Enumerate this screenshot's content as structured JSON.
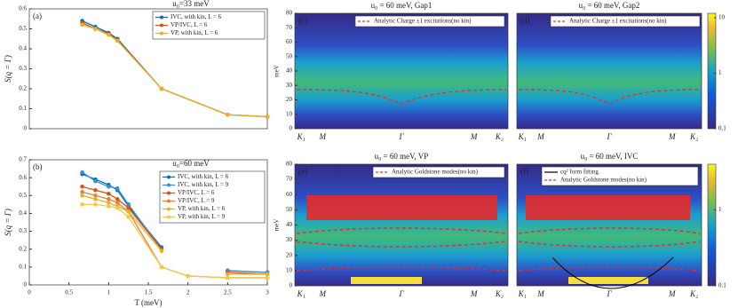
{
  "chart_data": [
    {
      "type": "line",
      "label": "(a)",
      "title": "u₀=33 meV",
      "ylabel": "S(q = Γ)",
      "x": [
        0.667,
        0.833,
        1.0,
        1.111,
        1.667,
        2.5,
        3.0
      ],
      "xlim": [
        0,
        3
      ],
      "ylim": [
        0,
        0.6
      ],
      "yticks": [
        0,
        0.1,
        0.2,
        0.3,
        0.4,
        0.5,
        0.6
      ],
      "series": [
        {
          "name": "IVC, with kin, L = 6",
          "color": "#0072bd",
          "values": [
            0.54,
            0.51,
            0.48,
            0.45,
            0.2,
            0.07,
            0.06
          ]
        },
        {
          "name": "VP/IVC, L = 6",
          "color": "#d95319",
          "values": [
            0.53,
            0.5,
            0.475,
            0.445,
            0.2,
            0.07,
            0.06
          ]
        },
        {
          "name": "VP, with kin, L = 6",
          "color": "#edb120",
          "values": [
            0.52,
            0.5,
            0.47,
            0.44,
            0.2,
            0.07,
            0.06
          ]
        }
      ]
    },
    {
      "type": "line",
      "label": "(b)",
      "title": "u₀=60 meV",
      "ylabel": "S(q = Γ)",
      "xlabel": "T (meV)",
      "x": [
        0.667,
        0.833,
        1.0,
        1.111,
        1.25,
        1.667,
        2.0,
        2.5,
        3.0
      ],
      "xlim": [
        0,
        3
      ],
      "ylim": [
        0,
        0.7
      ],
      "xticks": [
        0,
        0.5,
        1,
        1.5,
        2,
        2.5,
        3
      ],
      "yticks": [
        0,
        0.1,
        0.2,
        0.3,
        0.4,
        0.5,
        0.6,
        0.7
      ],
      "series": [
        {
          "name": "IVC, with kin, L = 6",
          "color": "#0072bd",
          "values": [
            0.62,
            0.59,
            0.56,
            0.53,
            0.44,
            0.21,
            null,
            0.08,
            0.07
          ]
        },
        {
          "name": "IVC, with kin, L = 9",
          "color": "#3a8fd0",
          "values": [
            0.63,
            0.58,
            0.55,
            0.54,
            0.45,
            0.2,
            null,
            0.08,
            0.07
          ]
        },
        {
          "name": "VP/IVC, L = 6",
          "color": "#d95319",
          "values": [
            0.55,
            0.53,
            0.51,
            0.48,
            0.43,
            0.2,
            null,
            0.07,
            0.06
          ]
        },
        {
          "name": "VP/IVC, L = 9",
          "color": "#e8803f",
          "values": [
            0.52,
            0.5,
            0.48,
            0.46,
            0.41,
            0.1,
            0.05,
            0.04,
            0.04
          ]
        },
        {
          "name": "VP, with kin, L = 6",
          "color": "#edb120",
          "values": [
            0.5,
            0.48,
            0.46,
            0.44,
            0.41,
            0.19,
            null,
            0.06,
            0.06
          ]
        },
        {
          "name": "VP, with kin, L = 9",
          "color": "#f3c84a",
          "values": [
            0.45,
            0.45,
            0.44,
            0.43,
            0.38,
            0.1,
            0.05,
            0.04,
            0.04
          ]
        }
      ]
    },
    {
      "type": "heatmap",
      "label": "(c)",
      "title": "u₀ = 60 meV, Gap1",
      "ylabel": "meV",
      "categories": [
        "K₁",
        "M",
        "Γ",
        "M",
        "K₂"
      ],
      "ylim": [
        0,
        80
      ],
      "yticks": [
        0,
        10,
        20,
        30,
        40,
        50,
        60,
        70,
        80
      ],
      "legend": [
        {
          "name": "Analytic Charge ±1 excitations(no kin)",
          "color": "#e03030"
        }
      ]
    },
    {
      "type": "heatmap",
      "label": "(d)",
      "title": "u₀ = 60 meV, Gap2",
      "categories": [
        "K₁",
        "M",
        "Γ",
        "M",
        "K₂"
      ],
      "ylim": [
        0,
        80
      ],
      "legend": [
        {
          "name": "Analytic Charge ±1 excitations(no kin)",
          "color": "#e03030"
        }
      ],
      "colorbar_lim": [
        0.1,
        12
      ],
      "colorbar_ticks": [
        0.1,
        1,
        10
      ],
      "colorbar_log": true
    },
    {
      "type": "heatmap",
      "label": "(e)",
      "title": "u₀ = 60 meV, VP",
      "ylabel": "meV",
      "categories": [
        "K₁",
        "M",
        "Γ",
        "M",
        "K₂"
      ],
      "ylim": [
        0,
        80
      ],
      "yticks": [
        0,
        10,
        20,
        30,
        40,
        50,
        60,
        70,
        80
      ],
      "legend": [
        {
          "name": "Analytic Goldstone modes(no kin)",
          "color": "#e03030"
        }
      ]
    },
    {
      "type": "heatmap",
      "label": "(f)",
      "title": "u₀ = 60 meV, IVC",
      "categories": [
        "K₁",
        "M",
        "Γ",
        "M",
        "K₂"
      ],
      "ylim": [
        0,
        80
      ],
      "legend": [
        {
          "name": "cq² form fitting",
          "color": "#000000",
          "solid": true
        },
        {
          "name": "Analytic Goldstone modes(no kin)",
          "color": "#e03030"
        }
      ],
      "colorbar_lim": [
        0.1,
        4
      ],
      "colorbar_ticks": [
        0.1,
        1
      ],
      "colorbar_log": true
    }
  ]
}
